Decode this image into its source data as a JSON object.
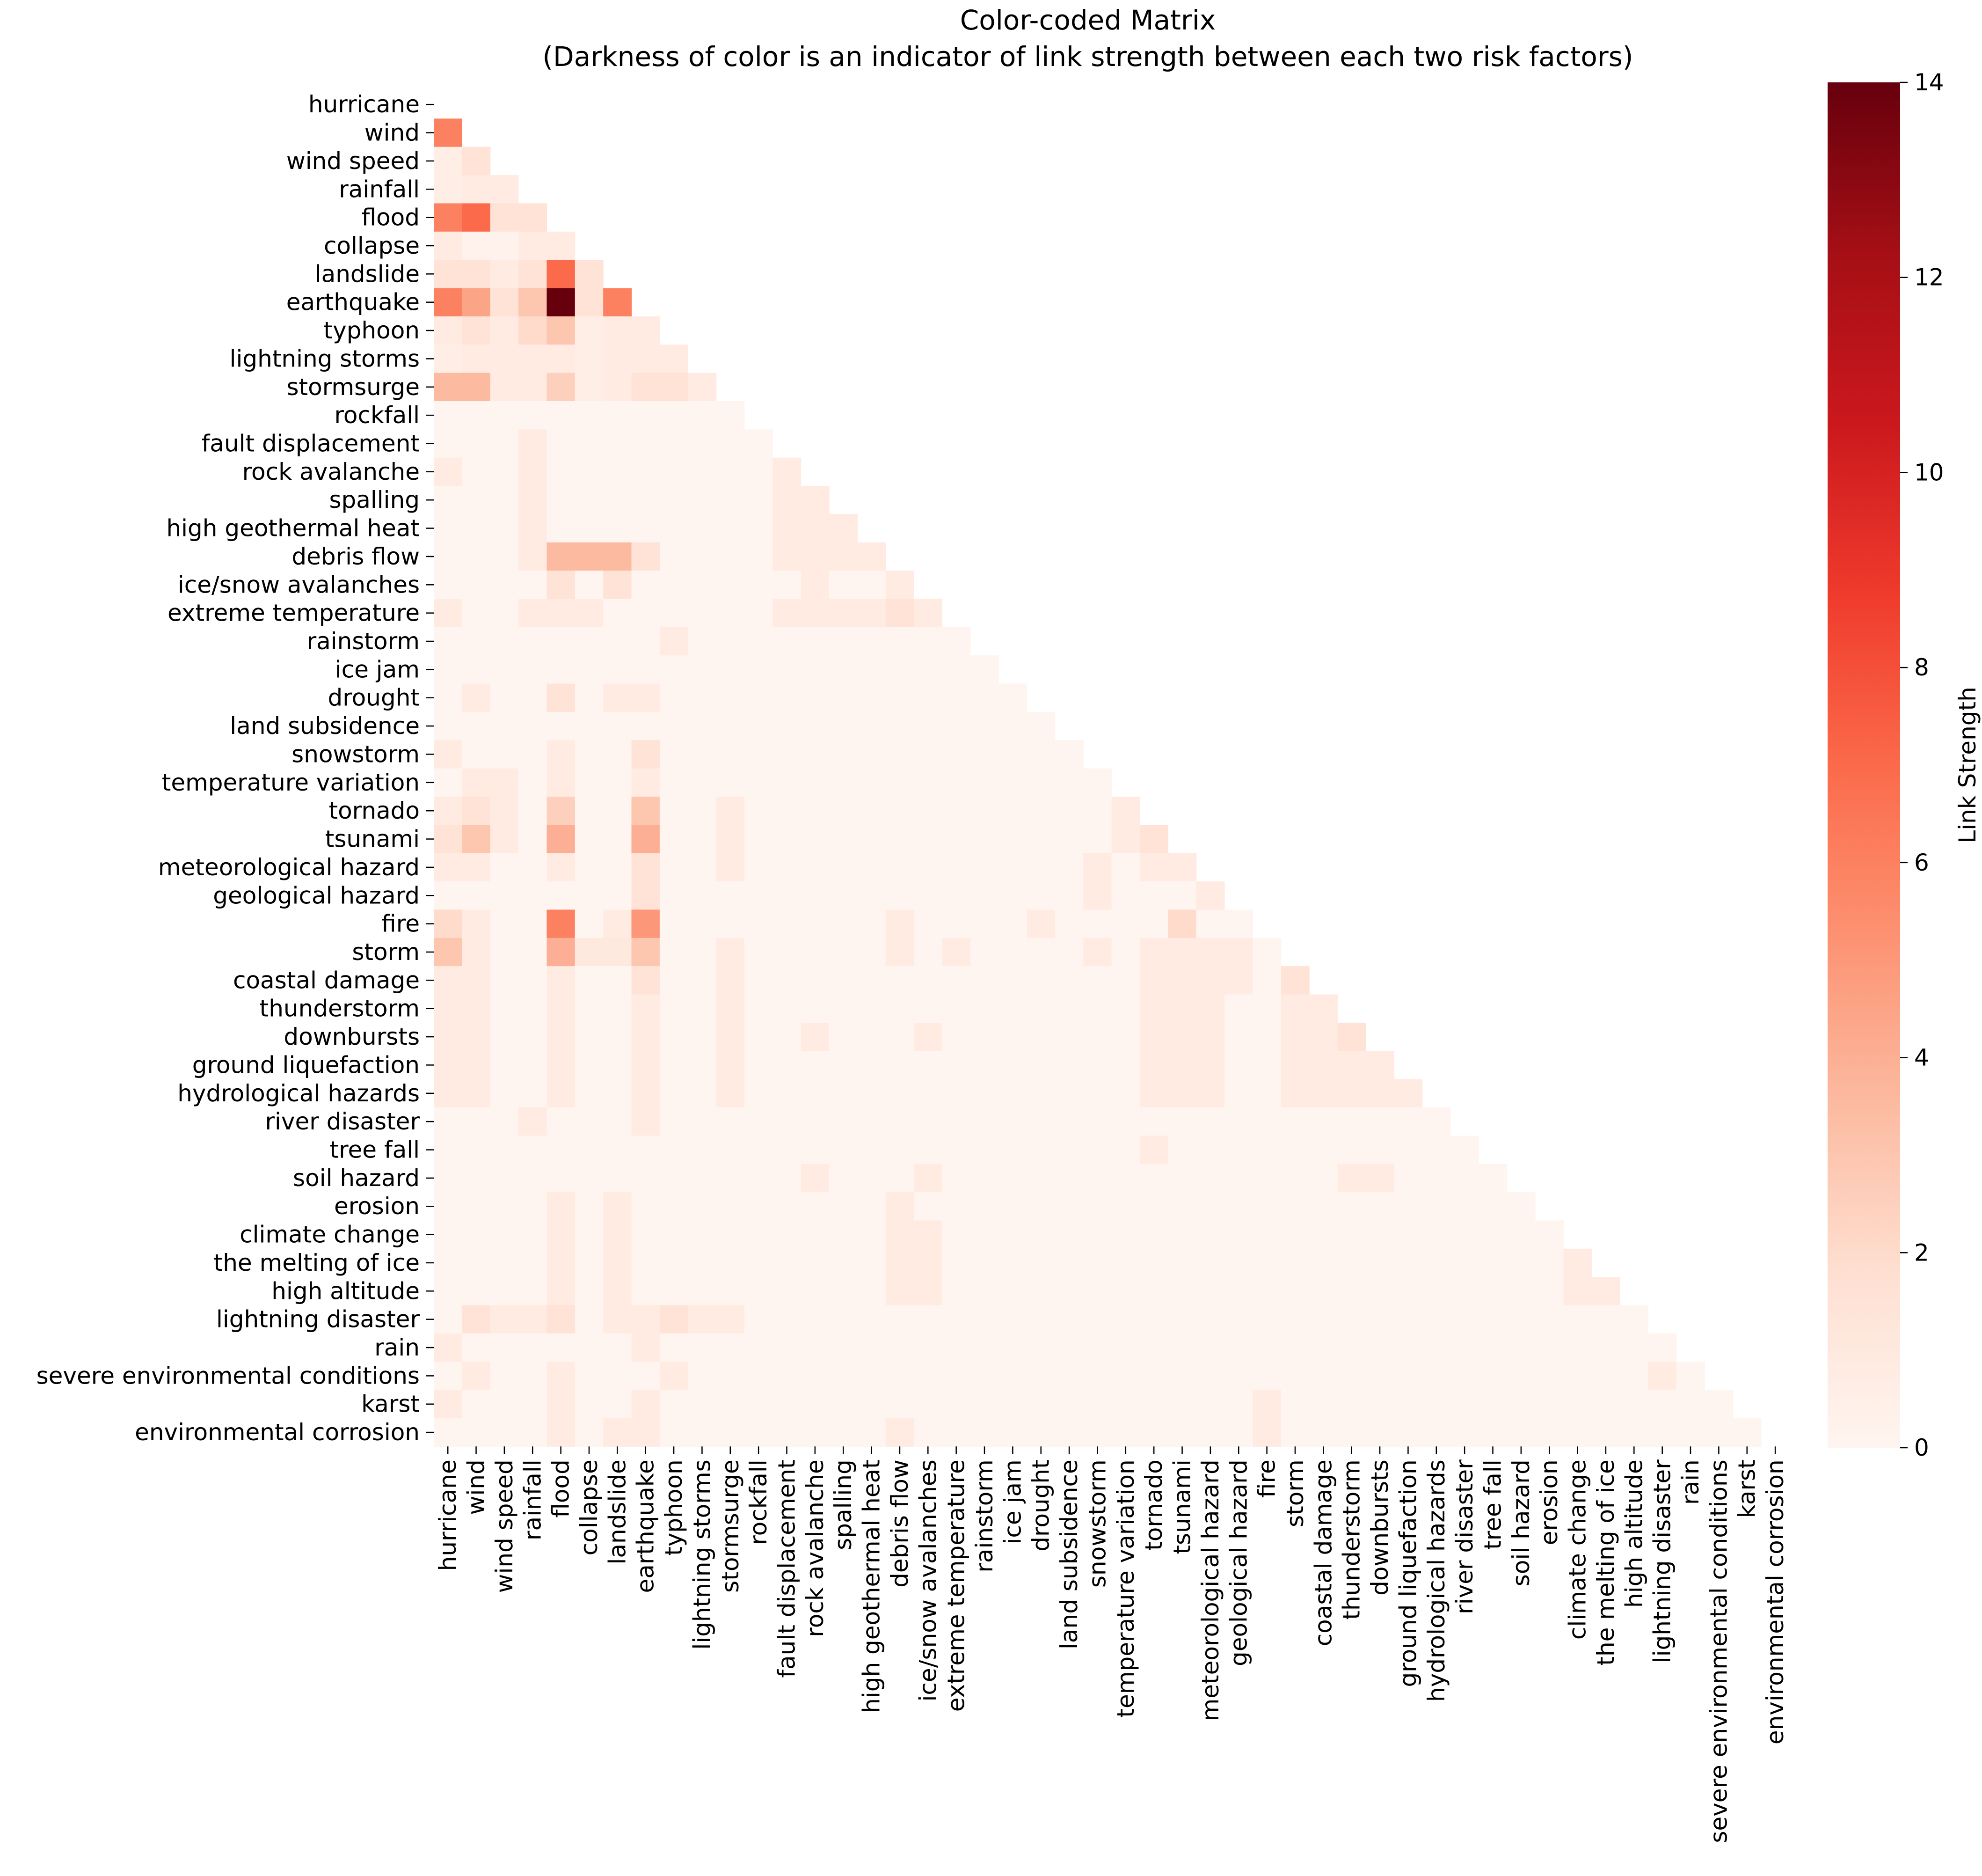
{
  "chart_data": {
    "type": "heatmap",
    "title_line1": "Color-coded Matrix",
    "title_line2": "(Darkness of color is an indicator of link strength between each two risk factors)",
    "colorbar_label": "Link Strength",
    "colorbar_ticks": [
      "0",
      "2",
      "4",
      "6",
      "8",
      "10",
      "12",
      "14"
    ],
    "vmin": 0,
    "vmax": 14,
    "colormap": "Reds",
    "labels": [
      "hurricane",
      "wind",
      "wind speed",
      "rainfall",
      "flood",
      "collapse",
      "landslide",
      "earthquake",
      "typhoon",
      "lightning storms",
      "stormsurge",
      "rockfall",
      "fault displacement",
      "rock avalanche",
      "spalling",
      "high geothermal heat",
      "debris flow",
      "ice/snow avalanches",
      "extreme temperature",
      "rainstorm",
      "ice jam",
      "drought",
      "land subsidence",
      "snowstorm",
      "temperature variation",
      "tornado",
      "tsunami",
      "meteorological hazard",
      "geological hazard",
      "fire",
      "storm",
      "coastal damage",
      "thunderstorm",
      "downbursts",
      "ground liquefaction",
      "hydrological hazards",
      "river disaster",
      "tree fall",
      "soil hazard",
      "erosion",
      "climate change",
      "the melting of ice",
      "high altitude",
      "lightning disaster",
      "rain",
      "severe environmental conditions",
      "karst",
      "environmental corrosion"
    ],
    "nonzero_cells": [
      [
        1,
        0,
        6
      ],
      [
        2,
        0,
        0.6
      ],
      [
        2,
        1,
        1.5
      ],
      [
        3,
        0,
        0.6
      ],
      [
        3,
        1,
        0.8
      ],
      [
        3,
        2,
        0.8
      ],
      [
        4,
        0,
        6
      ],
      [
        4,
        1,
        7
      ],
      [
        4,
        2,
        1.5
      ],
      [
        4,
        3,
        1.5
      ],
      [
        5,
        0,
        0.8
      ],
      [
        5,
        1,
        0.3
      ],
      [
        5,
        2,
        0.3
      ],
      [
        5,
        3,
        0.8
      ],
      [
        5,
        4,
        0.8
      ],
      [
        6,
        0,
        1.5
      ],
      [
        6,
        1,
        1.5
      ],
      [
        6,
        2,
        0.8
      ],
      [
        6,
        3,
        1.5
      ],
      [
        6,
        4,
        7
      ],
      [
        6,
        5,
        1.5
      ],
      [
        7,
        0,
        6
      ],
      [
        7,
        1,
        4.5
      ],
      [
        7,
        2,
        1.5
      ],
      [
        7,
        3,
        3
      ],
      [
        7,
        4,
        14
      ],
      [
        7,
        5,
        1.5
      ],
      [
        7,
        6,
        6
      ],
      [
        8,
        0,
        0.8
      ],
      [
        8,
        1,
        1.5
      ],
      [
        8,
        2,
        0.8
      ],
      [
        8,
        3,
        2
      ],
      [
        8,
        4,
        3
      ],
      [
        8,
        5,
        0.6
      ],
      [
        8,
        6,
        0.8
      ],
      [
        8,
        7,
        0.8
      ],
      [
        9,
        0,
        0.6
      ],
      [
        9,
        1,
        0.8
      ],
      [
        9,
        2,
        0.8
      ],
      [
        9,
        3,
        0.8
      ],
      [
        9,
        4,
        0.8
      ],
      [
        9,
        5,
        0.6
      ],
      [
        9,
        6,
        0.8
      ],
      [
        9,
        7,
        0.8
      ],
      [
        9,
        8,
        0.8
      ],
      [
        10,
        0,
        3.5
      ],
      [
        10,
        1,
        3.5
      ],
      [
        10,
        2,
        0.8
      ],
      [
        10,
        3,
        0.8
      ],
      [
        10,
        4,
        2.5
      ],
      [
        10,
        5,
        0.6
      ],
      [
        10,
        6,
        0.8
      ],
      [
        10,
        7,
        1.5
      ],
      [
        10,
        8,
        1.5
      ],
      [
        10,
        9,
        0.8
      ],
      [
        12,
        3,
        0.8
      ],
      [
        13,
        0,
        0.8
      ],
      [
        13,
        3,
        0.8
      ],
      [
        13,
        12,
        0.8
      ],
      [
        14,
        3,
        0.8
      ],
      [
        14,
        12,
        0.8
      ],
      [
        14,
        13,
        0.8
      ],
      [
        15,
        3,
        0.8
      ],
      [
        15,
        12,
        0.8
      ],
      [
        15,
        13,
        0.8
      ],
      [
        15,
        14,
        0.8
      ],
      [
        16,
        3,
        0.8
      ],
      [
        16,
        4,
        3.5
      ],
      [
        16,
        5,
        3.5
      ],
      [
        16,
        6,
        3.5
      ],
      [
        16,
        7,
        1.5
      ],
      [
        16,
        12,
        0.8
      ],
      [
        16,
        13,
        0.8
      ],
      [
        16,
        14,
        0.8
      ],
      [
        16,
        15,
        0.8
      ],
      [
        17,
        4,
        1.5
      ],
      [
        17,
        6,
        1.5
      ],
      [
        17,
        13,
        0.8
      ],
      [
        17,
        16,
        0.8
      ],
      [
        18,
        0,
        0.8
      ],
      [
        18,
        3,
        0.8
      ],
      [
        18,
        4,
        0.8
      ],
      [
        18,
        5,
        0.8
      ],
      [
        18,
        12,
        0.8
      ],
      [
        18,
        13,
        0.8
      ],
      [
        18,
        14,
        0.8
      ],
      [
        18,
        15,
        0.8
      ],
      [
        18,
        16,
        1.5
      ],
      [
        18,
        17,
        0.8
      ],
      [
        19,
        8,
        0.8
      ],
      [
        21,
        1,
        0.8
      ],
      [
        21,
        4,
        1.5
      ],
      [
        21,
        6,
        0.8
      ],
      [
        21,
        7,
        0.8
      ],
      [
        23,
        0,
        0.8
      ],
      [
        23,
        4,
        0.8
      ],
      [
        23,
        7,
        1.5
      ],
      [
        24,
        1,
        0.8
      ],
      [
        24,
        2,
        0.8
      ],
      [
        24,
        4,
        0.8
      ],
      [
        24,
        7,
        0.8
      ],
      [
        25,
        0,
        0.8
      ],
      [
        25,
        1,
        1.5
      ],
      [
        25,
        2,
        0.8
      ],
      [
        25,
        4,
        2.5
      ],
      [
        25,
        7,
        3
      ],
      [
        25,
        10,
        0.8
      ],
      [
        25,
        24,
        0.8
      ],
      [
        26,
        0,
        1.5
      ],
      [
        26,
        1,
        3
      ],
      [
        26,
        2,
        0.8
      ],
      [
        26,
        4,
        4
      ],
      [
        26,
        7,
        4
      ],
      [
        26,
        10,
        0.8
      ],
      [
        26,
        24,
        0.8
      ],
      [
        26,
        25,
        1.5
      ],
      [
        27,
        0,
        0.8
      ],
      [
        27,
        1,
        0.8
      ],
      [
        27,
        4,
        0.8
      ],
      [
        27,
        7,
        1.5
      ],
      [
        27,
        10,
        0.8
      ],
      [
        27,
        23,
        0.8
      ],
      [
        27,
        25,
        0.8
      ],
      [
        27,
        26,
        0.8
      ],
      [
        28,
        7,
        1.5
      ],
      [
        28,
        23,
        0.8
      ],
      [
        28,
        27,
        0.8
      ],
      [
        29,
        0,
        2
      ],
      [
        29,
        1,
        0.8
      ],
      [
        29,
        4,
        6
      ],
      [
        29,
        6,
        0.8
      ],
      [
        29,
        7,
        5
      ],
      [
        29,
        16,
        0.8
      ],
      [
        29,
        21,
        0.8
      ],
      [
        29,
        26,
        2
      ],
      [
        30,
        0,
        3
      ],
      [
        30,
        1,
        0.8
      ],
      [
        30,
        4,
        4
      ],
      [
        30,
        5,
        1
      ],
      [
        30,
        6,
        1
      ],
      [
        30,
        7,
        3
      ],
      [
        30,
        10,
        0.8
      ],
      [
        30,
        16,
        0.8
      ],
      [
        30,
        18,
        0.8
      ],
      [
        30,
        23,
        0.8
      ],
      [
        30,
        25,
        0.8
      ],
      [
        30,
        26,
        0.8
      ],
      [
        30,
        27,
        0.8
      ],
      [
        30,
        28,
        0.8
      ],
      [
        31,
        0,
        0.8
      ],
      [
        31,
        1,
        0.8
      ],
      [
        31,
        4,
        0.8
      ],
      [
        31,
        7,
        1.5
      ],
      [
        31,
        10,
        0.8
      ],
      [
        31,
        25,
        0.8
      ],
      [
        31,
        26,
        0.8
      ],
      [
        31,
        27,
        0.8
      ],
      [
        31,
        28,
        0.8
      ],
      [
        31,
        30,
        1.5
      ],
      [
        32,
        0,
        0.8
      ],
      [
        32,
        1,
        0.8
      ],
      [
        32,
        4,
        0.8
      ],
      [
        32,
        7,
        0.8
      ],
      [
        32,
        10,
        0.8
      ],
      [
        32,
        25,
        0.8
      ],
      [
        32,
        26,
        0.8
      ],
      [
        32,
        27,
        0.8
      ],
      [
        32,
        30,
        0.8
      ],
      [
        32,
        31,
        0.8
      ],
      [
        33,
        0,
        0.8
      ],
      [
        33,
        1,
        0.8
      ],
      [
        33,
        4,
        0.8
      ],
      [
        33,
        7,
        0.8
      ],
      [
        33,
        10,
        0.8
      ],
      [
        33,
        13,
        0.8
      ],
      [
        33,
        17,
        0.8
      ],
      [
        33,
        25,
        0.8
      ],
      [
        33,
        26,
        0.8
      ],
      [
        33,
        27,
        0.8
      ],
      [
        33,
        30,
        0.8
      ],
      [
        33,
        31,
        0.8
      ],
      [
        33,
        32,
        1.5
      ],
      [
        34,
        0,
        0.8
      ],
      [
        34,
        1,
        0.8
      ],
      [
        34,
        4,
        0.8
      ],
      [
        34,
        7,
        0.8
      ],
      [
        34,
        10,
        0.8
      ],
      [
        34,
        25,
        0.8
      ],
      [
        34,
        26,
        0.8
      ],
      [
        34,
        27,
        0.8
      ],
      [
        34,
        30,
        0.8
      ],
      [
        34,
        31,
        0.8
      ],
      [
        34,
        32,
        0.8
      ],
      [
        34,
        33,
        0.8
      ],
      [
        35,
        0,
        0.8
      ],
      [
        35,
        1,
        0.8
      ],
      [
        35,
        4,
        0.8
      ],
      [
        35,
        7,
        0.8
      ],
      [
        35,
        10,
        0.8
      ],
      [
        35,
        25,
        0.8
      ],
      [
        35,
        26,
        0.8
      ],
      [
        35,
        27,
        0.8
      ],
      [
        35,
        30,
        0.8
      ],
      [
        35,
        31,
        0.8
      ],
      [
        35,
        32,
        0.8
      ],
      [
        35,
        33,
        0.8
      ],
      [
        35,
        34,
        0.8
      ],
      [
        36,
        3,
        0.8
      ],
      [
        36,
        7,
        0.8
      ],
      [
        37,
        25,
        0.8
      ],
      [
        38,
        13,
        0.8
      ],
      [
        38,
        17,
        0.8
      ],
      [
        38,
        32,
        0.8
      ],
      [
        38,
        33,
        0.8
      ],
      [
        39,
        4,
        0.8
      ],
      [
        39,
        6,
        0.8
      ],
      [
        39,
        16,
        0.8
      ],
      [
        40,
        4,
        0.8
      ],
      [
        40,
        6,
        0.8
      ],
      [
        40,
        16,
        0.8
      ],
      [
        40,
        17,
        0.8
      ],
      [
        41,
        4,
        0.8
      ],
      [
        41,
        6,
        0.8
      ],
      [
        41,
        16,
        0.8
      ],
      [
        41,
        17,
        0.8
      ],
      [
        41,
        40,
        0.8
      ],
      [
        42,
        4,
        0.8
      ],
      [
        42,
        6,
        0.8
      ],
      [
        42,
        16,
        0.8
      ],
      [
        42,
        17,
        0.8
      ],
      [
        42,
        40,
        0.8
      ],
      [
        42,
        41,
        0.8
      ],
      [
        43,
        1,
        1.5
      ],
      [
        43,
        2,
        0.8
      ],
      [
        43,
        3,
        0.8
      ],
      [
        43,
        4,
        1.5
      ],
      [
        43,
        6,
        0.8
      ],
      [
        43,
        7,
        0.8
      ],
      [
        43,
        8,
        1.5
      ],
      [
        43,
        9,
        0.8
      ],
      [
        43,
        10,
        0.8
      ],
      [
        44,
        0,
        0.8
      ],
      [
        44,
        7,
        0.8
      ],
      [
        45,
        1,
        0.8
      ],
      [
        45,
        4,
        0.8
      ],
      [
        45,
        8,
        0.8
      ],
      [
        45,
        43,
        0.8
      ],
      [
        46,
        0,
        0.8
      ],
      [
        46,
        4,
        0.8
      ],
      [
        46,
        7,
        0.8
      ],
      [
        46,
        29,
        0.8
      ],
      [
        47,
        4,
        0.8
      ],
      [
        47,
        6,
        0.8
      ],
      [
        47,
        7,
        0.8
      ],
      [
        47,
        16,
        0.8
      ],
      [
        47,
        29,
        0.8
      ]
    ]
  }
}
